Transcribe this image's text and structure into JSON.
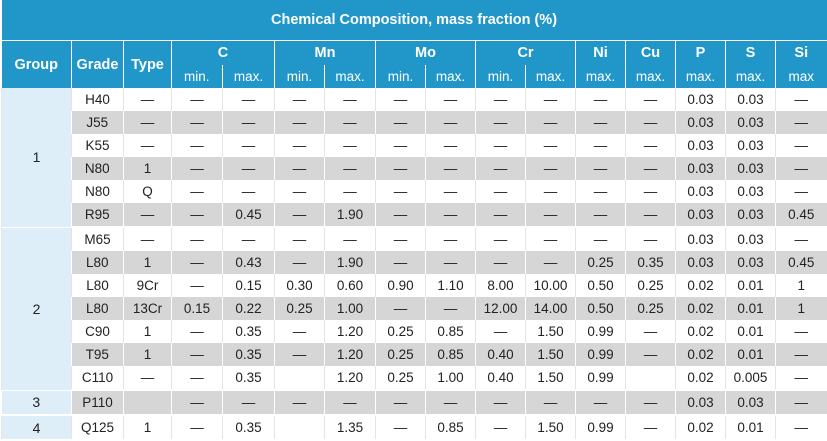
{
  "title": "Chemical Composition, mass fraction (%)",
  "columns": {
    "group": "Group",
    "grade": "Grade",
    "type": "Type",
    "elements": [
      {
        "name": "C",
        "subs": [
          "min.",
          "max."
        ]
      },
      {
        "name": "Mn",
        "subs": [
          "min.",
          "max."
        ]
      },
      {
        "name": "Mo",
        "subs": [
          "min.",
          "max."
        ]
      },
      {
        "name": "Cr",
        "subs": [
          "min.",
          "max."
        ]
      },
      {
        "name": "Ni",
        "subs": [
          "max."
        ]
      },
      {
        "name": "Cu",
        "subs": [
          "max."
        ]
      },
      {
        "name": "P",
        "subs": [
          "max."
        ]
      },
      {
        "name": "S",
        "subs": [
          "max."
        ]
      },
      {
        "name": "Si",
        "subs": [
          "max"
        ]
      }
    ]
  },
  "groups": [
    {
      "label": "1",
      "rows": [
        [
          "H40",
          "—",
          "—",
          "—",
          "—",
          "—",
          "—",
          "—",
          "—",
          "—",
          "—",
          "—",
          "0.03",
          "0.03",
          "—"
        ],
        [
          "J55",
          "—",
          "—",
          "—",
          "—",
          "—",
          "—",
          "—",
          "—",
          "—",
          "—",
          "—",
          "0.03",
          "0.03",
          "—"
        ],
        [
          "K55",
          "—",
          "—",
          "—",
          "—",
          "—",
          "—",
          "—",
          "—",
          "—",
          "—",
          "—",
          "0.03",
          "0.03",
          "—"
        ],
        [
          "N80",
          "1",
          "—",
          "—",
          "—",
          "—",
          "—",
          "—",
          "—",
          "—",
          "—",
          "—",
          "0.03",
          "0.03",
          "—"
        ],
        [
          "N80",
          "Q",
          "—",
          "—",
          "—",
          "—",
          "—",
          "—",
          "—",
          "—",
          "—",
          "—",
          "0.03",
          "0.03",
          "—"
        ],
        [
          "R95",
          "—",
          "—",
          "0.45",
          "—",
          "1.90",
          "—",
          "—",
          "—",
          "—",
          "—",
          "—",
          "0.03",
          "0.03",
          "0.45"
        ]
      ]
    },
    {
      "label": "2",
      "rows": [
        [
          "M65",
          "—",
          "—",
          "—",
          "—",
          "—",
          "—",
          "—",
          "—",
          "—",
          "—",
          "—",
          "0.03",
          "0.03",
          "—"
        ],
        [
          "L80",
          "1",
          "—",
          "0.43",
          "—",
          "1.90",
          "—",
          "—",
          "—",
          "—",
          "0.25",
          "0.35",
          "0.03",
          "0.03",
          "0.45"
        ],
        [
          "L80",
          "9Cr",
          "—",
          "0.15",
          "0.30",
          "0.60",
          "0.90",
          "1.10",
          "8.00",
          "10.00",
          "0.50",
          "0.25",
          "0.02",
          "0.01",
          "1"
        ],
        [
          "L80",
          "13Cr",
          "0.15",
          "0.22",
          "0.25",
          "1.00",
          "—",
          "—",
          "12.00",
          "14.00",
          "0.50",
          "0.25",
          "0.02",
          "0.01",
          "1"
        ],
        [
          "C90",
          "1",
          "—",
          "0.35",
          "—",
          "1.20",
          "0.25",
          "0.85",
          "—",
          "1.50",
          "0.99",
          "—",
          "0.02",
          "0.01",
          "—"
        ],
        [
          "T95",
          "1",
          "—",
          "0.35",
          "—",
          "1.20",
          "0.25",
          "0.85",
          "0.40",
          "1.50",
          "0.99",
          "—",
          "0.02",
          "0.01",
          "—"
        ],
        [
          "C110",
          "—",
          "—",
          "0.35",
          "",
          "1.20",
          "0.25",
          "1.00",
          "0.40",
          "1.50",
          "0.99",
          "",
          "0.02",
          "0.005",
          "—"
        ]
      ]
    },
    {
      "label": "3",
      "rows": [
        [
          "P110",
          "",
          "—",
          "—",
          "—",
          "—",
          "—",
          "—",
          "—",
          "—",
          "—",
          "—",
          "0.03",
          "0.03",
          "—"
        ]
      ]
    },
    {
      "label": "4",
      "rows": [
        [
          "Q125",
          "1",
          "—",
          "0.35",
          "",
          "1.35",
          "—",
          "0.85",
          "—",
          "1.50",
          "0.99",
          "—",
          "0.02",
          "0.01",
          "—"
        ]
      ]
    }
  ],
  "colors": {
    "header_bg": "#2196c8",
    "header_text": "#ffffff",
    "row_alt": "#d6d6d6",
    "row_plain": "#ffffff",
    "group_cell": "#deeef8"
  }
}
